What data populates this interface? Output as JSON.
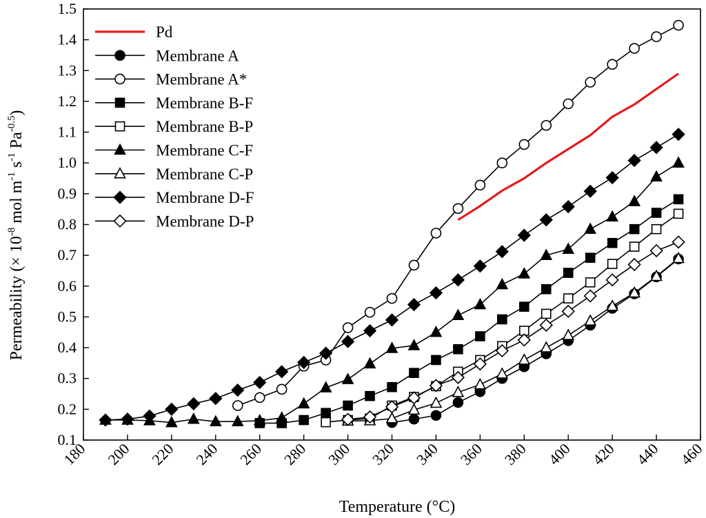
{
  "chart_data": {
    "type": "line",
    "title": "",
    "xlabel": "Temperature (°C)",
    "ylabel": {
      "prefix": "Permeability (× 10",
      "exp1": "-8",
      "mid1": " mol m",
      "exp2": "-1",
      "mid2": " s",
      "exp3": "-1",
      "mid3": " Pa",
      "exp4": "-0.5",
      "suffix": ")"
    },
    "xlim": [
      180,
      460
    ],
    "ylim": [
      0.1,
      1.5
    ],
    "xticks": [
      "180",
      "200",
      "220",
      "240",
      "260",
      "280",
      "300",
      "320",
      "340",
      "360",
      "380",
      "400",
      "420",
      "440",
      "460"
    ],
    "yticks": [
      "0.1",
      "0.2",
      "0.3",
      "0.4",
      "0.5",
      "0.6",
      "0.7",
      "0.8",
      "0.9",
      "1.0",
      "1.1",
      "1.2",
      "1.3",
      "1.4",
      "1.5"
    ],
    "legend_position": "top-left",
    "series": [
      {
        "name": "Pd",
        "marker": "none",
        "color": "#e31a1c",
        "x": [
          350,
          360,
          370,
          380,
          390,
          400,
          410,
          420,
          430,
          440,
          450
        ],
        "y": [
          0.815,
          0.86,
          0.91,
          0.95,
          1.0,
          1.045,
          1.09,
          1.15,
          1.19,
          1.24,
          1.29
        ]
      },
      {
        "name": "Membrane A",
        "marker": "circle-filled",
        "color": "#000000",
        "x": [
          320,
          330,
          340,
          350,
          360,
          370,
          380,
          390,
          400,
          410,
          420,
          430,
          440,
          450
        ],
        "y": [
          0.157,
          0.168,
          0.18,
          0.222,
          0.257,
          0.3,
          0.338,
          0.38,
          0.423,
          0.473,
          0.528,
          0.575,
          0.63,
          0.688
        ]
      },
      {
        "name": "Membrane A*",
        "marker": "circle-open",
        "color": "#000000",
        "x": [
          250,
          260,
          270,
          280,
          290,
          300,
          310,
          320,
          330,
          340,
          350,
          360,
          370,
          380,
          390,
          400,
          410,
          420,
          430,
          440,
          450
        ],
        "y": [
          0.212,
          0.238,
          0.265,
          0.34,
          0.36,
          0.465,
          0.515,
          0.56,
          0.668,
          0.772,
          0.852,
          0.928,
          1.0,
          1.06,
          1.122,
          1.192,
          1.262,
          1.32,
          1.372,
          1.41,
          1.447
        ]
      },
      {
        "name": "Membrane B-F",
        "marker": "square-filled",
        "color": "#000000",
        "x": [
          260,
          270,
          280,
          290,
          300,
          310,
          320,
          330,
          340,
          350,
          360,
          370,
          380,
          390,
          400,
          410,
          420,
          430,
          440,
          450
        ],
        "y": [
          0.155,
          0.155,
          0.165,
          0.188,
          0.212,
          0.243,
          0.272,
          0.318,
          0.36,
          0.395,
          0.437,
          0.492,
          0.533,
          0.59,
          0.643,
          0.692,
          0.74,
          0.785,
          0.838,
          0.882
        ]
      },
      {
        "name": "Membrane B-P",
        "marker": "square-open",
        "color": "#000000",
        "x": [
          290,
          300,
          310,
          320,
          330,
          340,
          350,
          360,
          370,
          380,
          390,
          400,
          410,
          420,
          430,
          440,
          450
        ],
        "y": [
          0.158,
          0.165,
          0.17,
          0.212,
          0.24,
          0.275,
          0.322,
          0.36,
          0.405,
          0.455,
          0.51,
          0.56,
          0.612,
          0.672,
          0.728,
          0.785,
          0.835
        ]
      },
      {
        "name": "Membrane C-F",
        "marker": "triangle-filled",
        "color": "#000000",
        "x": [
          190,
          200,
          210,
          220,
          230,
          240,
          250,
          260,
          270,
          280,
          290,
          300,
          310,
          320,
          330,
          340,
          350,
          360,
          370,
          380,
          390,
          400,
          410,
          420,
          430,
          440,
          450
        ],
        "y": [
          0.165,
          0.165,
          0.163,
          0.157,
          0.168,
          0.16,
          0.16,
          0.163,
          0.172,
          0.218,
          0.27,
          0.297,
          0.348,
          0.398,
          0.407,
          0.45,
          0.505,
          0.54,
          0.605,
          0.64,
          0.7,
          0.72,
          0.785,
          0.825,
          0.875,
          0.955,
          1.0
        ]
      },
      {
        "name": "Membrane C-P",
        "marker": "triangle-open",
        "color": "#000000",
        "x": [
          300,
          310,
          320,
          330,
          340,
          350,
          360,
          370,
          380,
          390,
          400,
          410,
          420,
          430,
          440,
          450
        ],
        "y": [
          0.162,
          0.163,
          0.17,
          0.198,
          0.22,
          0.255,
          0.28,
          0.315,
          0.36,
          0.4,
          0.44,
          0.487,
          0.535,
          0.578,
          0.632,
          0.69
        ]
      },
      {
        "name": "Membrane D-F",
        "marker": "diamond-filled",
        "color": "#000000",
        "x": [
          190,
          200,
          210,
          220,
          230,
          240,
          250,
          260,
          270,
          280,
          290,
          300,
          310,
          320,
          330,
          340,
          350,
          360,
          370,
          380,
          390,
          400,
          410,
          420,
          430,
          440,
          450
        ],
        "y": [
          0.165,
          0.168,
          0.178,
          0.2,
          0.218,
          0.235,
          0.262,
          0.287,
          0.322,
          0.352,
          0.382,
          0.42,
          0.455,
          0.49,
          0.54,
          0.578,
          0.62,
          0.665,
          0.712,
          0.765,
          0.815,
          0.858,
          0.908,
          0.952,
          1.008,
          1.05,
          1.093
        ]
      },
      {
        "name": "Membrane D-P",
        "marker": "diamond-open",
        "color": "#000000",
        "x": [
          300,
          310,
          320,
          330,
          340,
          350,
          360,
          370,
          380,
          390,
          400,
          410,
          420,
          430,
          440,
          450
        ],
        "y": [
          0.167,
          0.175,
          0.208,
          0.237,
          0.277,
          0.303,
          0.347,
          0.39,
          0.425,
          0.473,
          0.518,
          0.568,
          0.62,
          0.67,
          0.715,
          0.743
        ]
      }
    ]
  }
}
